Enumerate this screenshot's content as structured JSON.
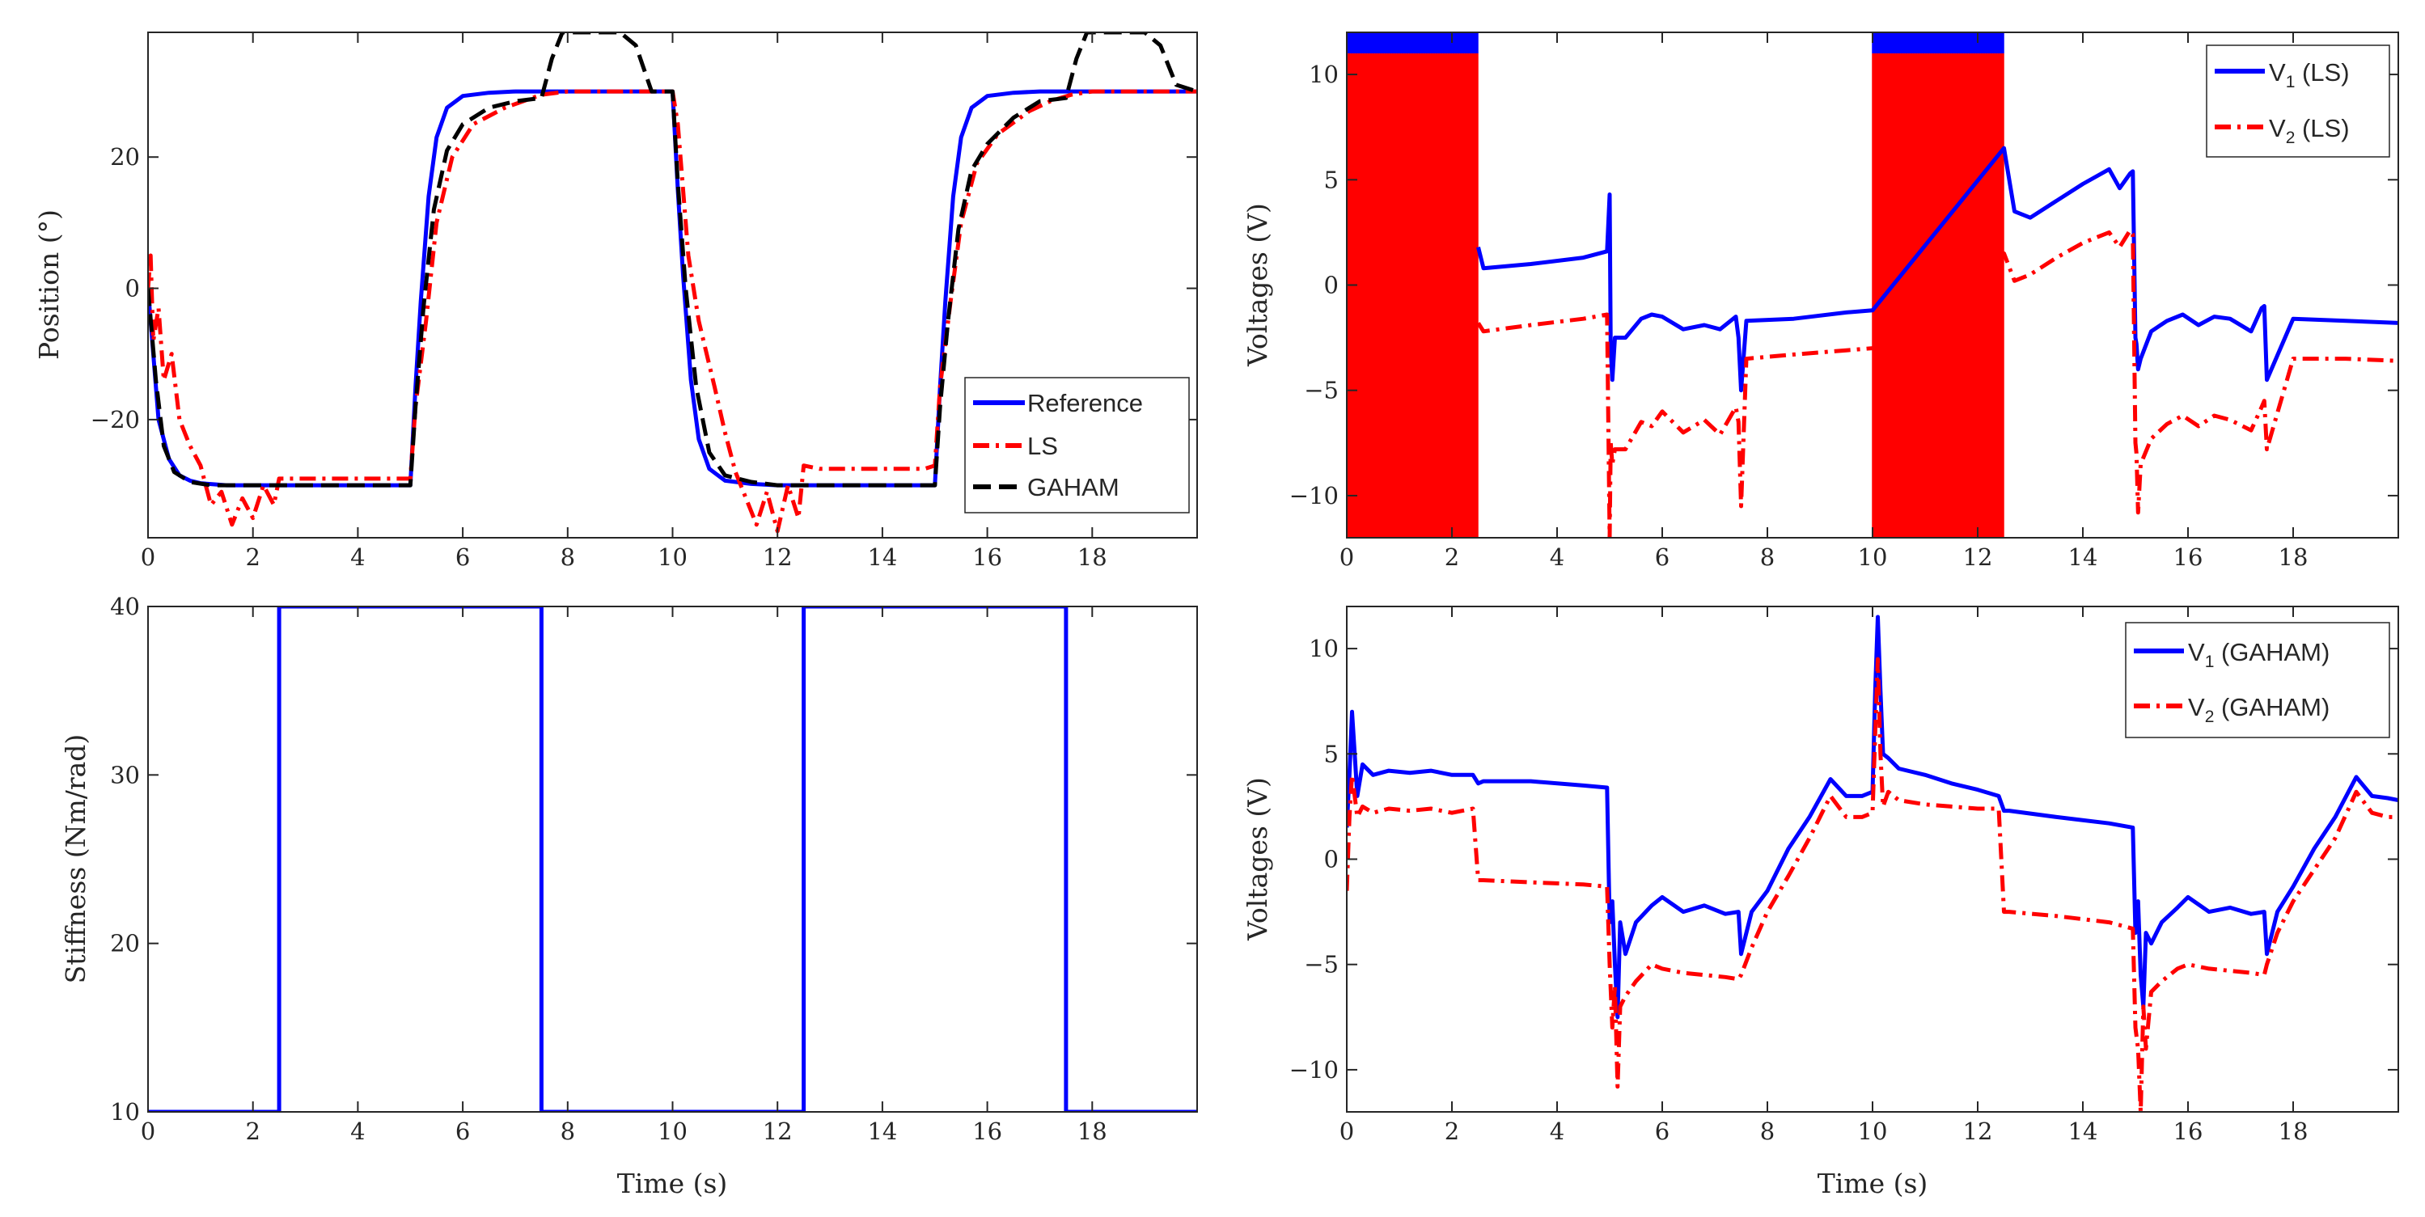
{
  "figure_caption": "",
  "colors": {
    "blue": "#0000ff",
    "red": "#ff0000",
    "black": "#000000",
    "axis": "#262626"
  },
  "chart_data": [
    {
      "id": "position",
      "type": "line",
      "title": "",
      "xlabel": "",
      "ylabel": "Position (°)",
      "xlim": [
        0,
        20
      ],
      "ylim": [
        -38,
        39
      ],
      "xticks": [
        0,
        2,
        4,
        6,
        8,
        10,
        12,
        14,
        16,
        18
      ],
      "yticks": [
        -20,
        0,
        20
      ],
      "ytick_labels": [
        "−20",
        "0",
        "20"
      ],
      "grid": false,
      "legend_position": "bottom-right",
      "series": [
        {
          "name": "Reference",
          "color": "#0000ff",
          "style": "solid",
          "x": [
            0,
            0.2,
            0.4,
            0.6,
            0.8,
            1.0,
            1.5,
            2.0,
            3.0,
            5.0,
            5.1,
            5.2,
            5.35,
            5.5,
            5.7,
            6.0,
            6.5,
            7.0,
            8.0,
            10.0,
            10.1,
            10.2,
            10.35,
            10.5,
            10.7,
            11.0,
            11.5,
            12.0,
            13.0,
            15.0,
            15.1,
            15.2,
            15.35,
            15.5,
            15.7,
            16.0,
            16.5,
            17.0,
            18.0,
            20.0
          ],
          "y": [
            0,
            -20,
            -26,
            -28.5,
            -29.3,
            -29.7,
            -30,
            -30,
            -30,
            -30,
            -15,
            -2,
            14,
            23,
            27.5,
            29.3,
            29.8,
            30,
            30,
            30,
            15,
            2,
            -14,
            -23,
            -27.5,
            -29.3,
            -29.8,
            -30,
            -30,
            -30,
            -15,
            -2,
            14,
            23,
            27.5,
            29.3,
            29.8,
            30,
            30,
            30
          ]
        },
        {
          "name": "LS",
          "color": "#ff0000",
          "style": "dashdot",
          "x": [
            0,
            0.05,
            0.1,
            0.2,
            0.3,
            0.45,
            0.6,
            0.8,
            1.0,
            1.2,
            1.4,
            1.6,
            1.8,
            2.0,
            2.2,
            2.4,
            2.5,
            2.8,
            3.5,
            5.0,
            5.1,
            5.3,
            5.5,
            5.8,
            6.2,
            6.8,
            7.5,
            8.0,
            10.0,
            10.1,
            10.3,
            10.5,
            10.8,
            11.0,
            11.2,
            11.4,
            11.6,
            11.8,
            12.0,
            12.2,
            12.4,
            12.5,
            12.8,
            13.5,
            14.8,
            15.0,
            15.1,
            15.3,
            15.5,
            15.8,
            16.2,
            16.8,
            17.2,
            17.6,
            18.0,
            20.0
          ],
          "y": [
            0,
            5,
            -8,
            -3,
            -14,
            -10,
            -20,
            -24,
            -27,
            -33,
            -31,
            -36,
            -32,
            -35,
            -30,
            -33,
            -29,
            -29,
            -29,
            -29,
            -18,
            -5,
            10,
            20,
            25,
            27.5,
            29.5,
            30,
            30,
            25,
            5,
            -5,
            -15,
            -22,
            -28,
            -32,
            -36,
            -31,
            -37,
            -30,
            -35,
            -27,
            -27.5,
            -27.5,
            -27.5,
            -27,
            -15,
            -2,
            10,
            19,
            23.5,
            27,
            28.5,
            29.5,
            30,
            30
          ]
        },
        {
          "name": "GAHAM",
          "color": "#000000",
          "style": "dashed",
          "x": [
            0,
            0.15,
            0.3,
            0.5,
            0.8,
            1.2,
            2.0,
            3.0,
            5.0,
            5.1,
            5.25,
            5.45,
            5.7,
            6.0,
            6.5,
            7.0,
            7.5,
            7.7,
            7.9,
            8.2,
            9.0,
            9.3,
            9.6,
            10.0,
            10.1,
            10.25,
            10.45,
            10.7,
            11.0,
            11.5,
            12.0,
            13.0,
            15.0,
            15.1,
            15.25,
            15.45,
            15.7,
            16.0,
            16.5,
            17.0,
            17.5,
            17.7,
            17.9,
            18.2,
            19.0,
            19.3,
            19.6,
            20.0
          ],
          "y": [
            0,
            -14,
            -24,
            -28,
            -29.5,
            -30,
            -30,
            -30,
            -30,
            -18,
            -3,
            12,
            21,
            25,
            27.5,
            28.5,
            29,
            35,
            39,
            39,
            39,
            37,
            30,
            30,
            16,
            0,
            -15,
            -25,
            -28.5,
            -29.5,
            -30,
            -30,
            -30,
            -18,
            -5,
            9,
            18,
            22,
            26,
            28.5,
            29,
            35,
            39,
            39,
            39,
            37,
            31,
            30
          ]
        }
      ]
    },
    {
      "id": "stiffness",
      "type": "line",
      "title": "",
      "xlabel": "Time (s)",
      "ylabel": "Stiffness (Nm/rad)",
      "xlim": [
        0,
        20
      ],
      "ylim": [
        10,
        40
      ],
      "xticks": [
        0,
        2,
        4,
        6,
        8,
        10,
        12,
        14,
        16,
        18
      ],
      "yticks": [
        10,
        20,
        30,
        40
      ],
      "grid": false,
      "series": [
        {
          "name": "Stiffness",
          "color": "#0000ff",
          "style": "solid",
          "x": [
            0,
            2.5,
            2.5,
            7.5,
            7.5,
            12.5,
            12.5,
            17.5,
            17.5,
            20
          ],
          "y": [
            10,
            10,
            40,
            40,
            10,
            10,
            40,
            40,
            10,
            10
          ]
        }
      ]
    },
    {
      "id": "voltages-ls",
      "type": "line",
      "title": "",
      "xlabel": "",
      "ylabel": "Voltages (V)",
      "xlim": [
        0,
        20
      ],
      "ylim": [
        -12,
        12
      ],
      "xticks": [
        0,
        2,
        4,
        6,
        8,
        10,
        12,
        14,
        16,
        18
      ],
      "yticks": [
        -10,
        -5,
        0,
        5,
        10
      ],
      "ytick_labels": [
        "−10",
        "−5",
        "0",
        "5",
        "10"
      ],
      "grid": false,
      "legend_position": "top-right",
      "chattering_intervals": [
        [
          0,
          2.5
        ],
        [
          10,
          12.5
        ]
      ],
      "series": [
        {
          "name": "V1 (LS)",
          "legend_main": "V",
          "legend_sub": "1",
          "legend_rest": " (LS)",
          "color": "#0000ff",
          "style": "solid",
          "chatter_range": [
            11,
            12
          ],
          "x": [
            2.5,
            2.6,
            3.5,
            4.5,
            4.95,
            5.0,
            5.02,
            5.05,
            5.1,
            5.3,
            5.6,
            5.8,
            6.0,
            6.4,
            6.8,
            7.1,
            7.4,
            7.45,
            7.5,
            7.6,
            8.5,
            9.5,
            10.0,
            12.5,
            12.7,
            13.0,
            13.5,
            14.0,
            14.5,
            14.7,
            14.9,
            14.95,
            15.0,
            15.02,
            15.05,
            15.1,
            15.3,
            15.6,
            15.9,
            16.2,
            16.5,
            16.8,
            17.2,
            17.4,
            17.45,
            17.5,
            18.0,
            19.0,
            20.0
          ],
          "y": [
            1.8,
            0.8,
            1.0,
            1.3,
            1.6,
            4.3,
            -3,
            -4.5,
            -2.5,
            -2.5,
            -1.6,
            -1.4,
            -1.5,
            -2.1,
            -1.9,
            -2.1,
            -1.5,
            -2.5,
            -5,
            -1.7,
            -1.6,
            -1.3,
            -1.2,
            6.5,
            3.5,
            3.2,
            4.0,
            4.8,
            5.5,
            4.6,
            5.3,
            5.4,
            -2.5,
            -2.8,
            -4,
            -3.5,
            -2.2,
            -1.7,
            -1.4,
            -1.9,
            -1.5,
            -1.6,
            -2.2,
            -1.1,
            -1.0,
            -4.5,
            -1.6,
            -1.7,
            -1.8
          ]
        },
        {
          "name": "V2 (LS)",
          "legend_main": "V",
          "legend_sub": "2",
          "legend_rest": " (LS)",
          "color": "#ff0000",
          "style": "dashdot",
          "chatter_range": [
            -12,
            11
          ],
          "x": [
            2.5,
            2.6,
            3.5,
            4.5,
            4.95,
            5.0,
            5.02,
            5.05,
            5.1,
            5.3,
            5.6,
            5.8,
            6.0,
            6.4,
            6.8,
            7.1,
            7.4,
            7.45,
            7.5,
            7.6,
            8.5,
            9.5,
            10.0,
            12.5,
            12.7,
            13.0,
            13.5,
            14.0,
            14.5,
            14.7,
            14.9,
            14.95,
            15.0,
            15.02,
            15.05,
            15.1,
            15.3,
            15.6,
            15.9,
            16.2,
            16.5,
            16.8,
            17.2,
            17.4,
            17.45,
            17.5,
            18.0,
            19.0,
            20.0
          ],
          "y": [
            -1.8,
            -2.2,
            -1.9,
            -1.6,
            -1.4,
            -12,
            -7.5,
            -8.5,
            -7.8,
            -7.8,
            -6.5,
            -6.7,
            -6.0,
            -7.0,
            -6.4,
            -7.1,
            -5.8,
            -6.5,
            -10.5,
            -3.5,
            -3.3,
            -3.1,
            -3.0,
            1.5,
            0.2,
            0.5,
            1.3,
            2.0,
            2.5,
            1.8,
            2.6,
            2.4,
            -7.5,
            -8,
            -10.8,
            -8.5,
            -7.3,
            -6.6,
            -6.2,
            -6.7,
            -6.2,
            -6.4,
            -6.9,
            -5.8,
            -5.5,
            -7.8,
            -3.5,
            -3.5,
            -3.6
          ]
        }
      ]
    },
    {
      "id": "voltages-gaham",
      "type": "line",
      "title": "",
      "xlabel": "Time (s)",
      "ylabel": "Voltages (V)",
      "xlim": [
        0,
        20
      ],
      "ylim": [
        -12,
        12
      ],
      "xticks": [
        0,
        2,
        4,
        6,
        8,
        10,
        12,
        14,
        16,
        18
      ],
      "yticks": [
        -10,
        -5,
        0,
        5,
        10
      ],
      "ytick_labels": [
        "−10",
        "−5",
        "0",
        "5",
        "10"
      ],
      "grid": false,
      "legend_position": "top-right",
      "series": [
        {
          "name": "V1 (GAHAM)",
          "legend_main": "V",
          "legend_sub": "1",
          "legend_rest": " (GAHAM)",
          "color": "#0000ff",
          "style": "solid",
          "x": [
            0,
            0.05,
            0.1,
            0.15,
            0.2,
            0.3,
            0.5,
            0.8,
            1.2,
            1.6,
            2.0,
            2.4,
            2.5,
            2.6,
            3.5,
            4.5,
            4.95,
            5.0,
            5.05,
            5.1,
            5.15,
            5.2,
            5.3,
            5.5,
            5.8,
            6.0,
            6.4,
            6.8,
            7.2,
            7.45,
            7.5,
            7.7,
            8.0,
            8.4,
            8.8,
            9.2,
            9.5,
            9.8,
            10.0,
            10.05,
            10.1,
            10.15,
            10.2,
            10.3,
            10.5,
            11.0,
            11.5,
            12.0,
            12.4,
            12.5,
            12.6,
            13.5,
            14.5,
            14.95,
            15.0,
            15.05,
            15.1,
            15.15,
            15.2,
            15.3,
            15.5,
            15.8,
            16.0,
            16.4,
            16.8,
            17.2,
            17.45,
            17.5,
            17.7,
            18.0,
            18.4,
            18.8,
            19.2,
            19.5,
            19.8,
            20.0
          ],
          "y": [
            1.5,
            4,
            7,
            5,
            3,
            4.5,
            4.0,
            4.2,
            4.1,
            4.2,
            4.0,
            4.0,
            3.6,
            3.7,
            3.7,
            3.5,
            3.4,
            -3,
            -2,
            -5,
            -7.5,
            -3,
            -4.5,
            -3,
            -2.2,
            -1.8,
            -2.5,
            -2.2,
            -2.6,
            -2.5,
            -4.5,
            -2.5,
            -1.5,
            0.5,
            2.0,
            3.8,
            3.0,
            3.0,
            3.2,
            8,
            11.5,
            8,
            5,
            4.8,
            4.3,
            4.0,
            3.6,
            3.3,
            3.0,
            2.3,
            2.3,
            2.0,
            1.7,
            1.5,
            -3.5,
            -2,
            -5.5,
            -7,
            -3.5,
            -4,
            -3.0,
            -2.3,
            -1.8,
            -2.5,
            -2.3,
            -2.6,
            -2.5,
            -4.5,
            -2.5,
            -1.3,
            0.5,
            2.0,
            3.9,
            3.0,
            2.9,
            2.8
          ]
        },
        {
          "name": "V2 (GAHAM)",
          "legend_main": "V",
          "legend_sub": "2",
          "legend_rest": " (GAHAM)",
          "color": "#ff0000",
          "style": "dashdot",
          "x": [
            0,
            0.05,
            0.1,
            0.15,
            0.2,
            0.3,
            0.5,
            0.8,
            1.2,
            1.6,
            2.0,
            2.4,
            2.5,
            2.6,
            3.5,
            4.5,
            4.95,
            5.0,
            5.05,
            5.1,
            5.15,
            5.2,
            5.3,
            5.5,
            5.8,
            6.0,
            6.4,
            6.8,
            7.2,
            7.45,
            7.5,
            7.7,
            8.0,
            8.4,
            8.8,
            9.2,
            9.5,
            9.8,
            10.0,
            10.05,
            10.1,
            10.15,
            10.2,
            10.3,
            10.5,
            11.0,
            11.5,
            12.0,
            12.4,
            12.5,
            12.6,
            13.5,
            14.5,
            14.95,
            15.0,
            15.05,
            15.1,
            15.15,
            15.2,
            15.3,
            15.5,
            15.8,
            16.0,
            16.4,
            16.8,
            17.2,
            17.45,
            17.5,
            17.7,
            18.0,
            18.4,
            18.8,
            19.2,
            19.5,
            19.8,
            20.0
          ],
          "y": [
            -1.5,
            2,
            4,
            3,
            2,
            2.5,
            2.2,
            2.4,
            2.3,
            2.4,
            2.2,
            2.4,
            -1.0,
            -1.0,
            -1.1,
            -1.2,
            -1.3,
            -5,
            -8,
            -6,
            -10.8,
            -7,
            -6.5,
            -5.8,
            -5.0,
            -5.2,
            -5.4,
            -5.5,
            -5.6,
            -5.7,
            -5.5,
            -4.2,
            -2.5,
            -0.8,
            1.0,
            3.0,
            2.0,
            2.0,
            2.2,
            6,
            9.5,
            5,
            2.5,
            3.2,
            2.8,
            2.6,
            2.5,
            2.4,
            2.4,
            -2.5,
            -2.5,
            -2.7,
            -3.0,
            -3.3,
            -8,
            -9,
            -12,
            -7,
            -9,
            -6.3,
            -5.8,
            -5.2,
            -5.0,
            -5.2,
            -5.3,
            -5.4,
            -5.5,
            -5.0,
            -3.5,
            -2.0,
            -0.5,
            1.0,
            3.2,
            2.2,
            2.0,
            2.0
          ]
        }
      ]
    }
  ]
}
